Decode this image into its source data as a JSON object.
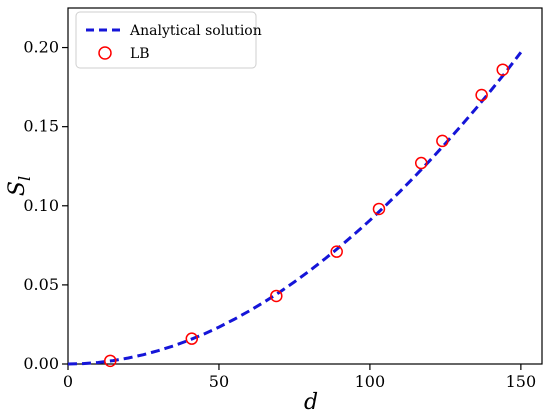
{
  "chart_data": {
    "type": "scatter",
    "xlabel": "d",
    "ylabel_main": "S",
    "ylabel_sub": "l",
    "xlim": [
      0,
      157
    ],
    "ylim": [
      0,
      0.225
    ],
    "xticks": [
      0,
      50,
      100,
      150
    ],
    "yticks": [
      0.0,
      0.05,
      0.1,
      0.15,
      0.2
    ],
    "xtick_labels": [
      "0",
      "50",
      "100",
      "150"
    ],
    "ytick_labels": [
      "0.00",
      "0.05",
      "0.10",
      "0.15",
      "0.20"
    ],
    "legend_position": "top-left",
    "series": [
      {
        "name": "Analytical solution",
        "kind": "line",
        "style": "dashed",
        "color": "#1515d8",
        "x": [
          0,
          5,
          10,
          15,
          20,
          25,
          30,
          35,
          40,
          45,
          50,
          55,
          60,
          65,
          70,
          75,
          80,
          85,
          90,
          95,
          100,
          105,
          110,
          115,
          120,
          125,
          130,
          135,
          140,
          145,
          150
        ],
        "y": [
          0.0,
          0.00024,
          0.00096,
          0.00215,
          0.0038,
          0.0059,
          0.0085,
          0.0115,
          0.015,
          0.0189,
          0.0233,
          0.0282,
          0.0335,
          0.0392,
          0.0453,
          0.0519,
          0.0589,
          0.0663,
          0.0741,
          0.0823,
          0.0908,
          0.0998,
          0.1091,
          0.1188,
          0.1289,
          0.1393,
          0.1501,
          0.1612,
          0.1727,
          0.1845,
          0.197
        ]
      },
      {
        "name": "LB",
        "kind": "scatter",
        "marker": "open-circle",
        "color": "#ff0000",
        "x": [
          14,
          41,
          69,
          89,
          103,
          117,
          124,
          137,
          144
        ],
        "y": [
          0.002,
          0.016,
          0.043,
          0.071,
          0.098,
          0.127,
          0.141,
          0.17,
          0.186
        ]
      }
    ]
  }
}
